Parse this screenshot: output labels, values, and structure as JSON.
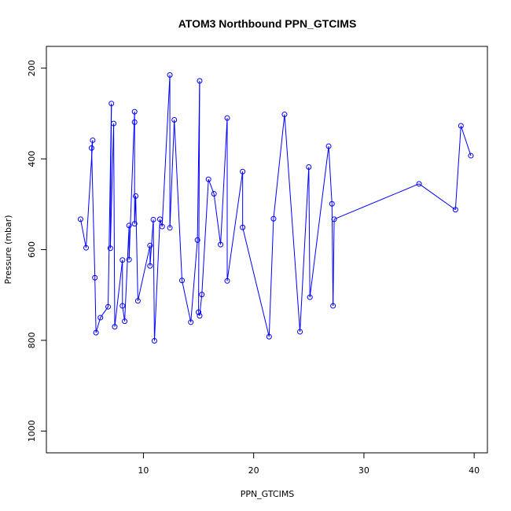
{
  "chart_data": {
    "type": "line",
    "title": "ATOM3 Northbound PPN_GTCIMS",
    "xlabel": "PPN_GTCIMS",
    "ylabel": "Pressure (mbar)",
    "xlim": [
      1.2,
      41.2
    ],
    "ylim": [
      1048,
      152
    ],
    "y_reversed": true,
    "x_ticks": [
      10,
      20,
      30,
      40
    ],
    "y_ticks": [
      200,
      400,
      600,
      800,
      1000
    ],
    "grid": false,
    "legend": "none",
    "line_color": "#0000ff",
    "point_marker": "open-circle",
    "series": [
      {
        "points": [
          [
            4.3,
            533
          ],
          [
            4.8,
            596
          ],
          [
            5.4,
            359
          ],
          [
            5.3,
            376
          ],
          [
            5.6,
            662
          ],
          [
            5.7,
            783
          ],
          [
            6.1,
            750
          ],
          [
            6.8,
            726
          ],
          [
            7.1,
            278
          ],
          [
            7.0,
            597
          ],
          [
            7.3,
            322
          ],
          [
            7.4,
            770
          ],
          [
            8.1,
            623
          ],
          [
            8.1,
            724
          ],
          [
            8.3,
            758
          ],
          [
            8.7,
            547
          ],
          [
            8.7,
            622
          ],
          [
            9.2,
            296
          ],
          [
            9.2,
            319
          ],
          [
            9.2,
            543
          ],
          [
            9.3,
            482
          ],
          [
            9.5,
            713
          ],
          [
            10.6,
            591
          ],
          [
            10.6,
            636
          ],
          [
            10.9,
            534
          ],
          [
            11.0,
            801
          ],
          [
            11.5,
            533
          ],
          [
            11.7,
            549
          ],
          [
            12.4,
            215
          ],
          [
            12.4,
            552
          ],
          [
            12.8,
            314
          ],
          [
            13.5,
            668
          ],
          [
            14.3,
            760
          ],
          [
            14.9,
            579
          ],
          [
            15.1,
            228
          ],
          [
            15.0,
            738
          ],
          [
            15.1,
            746
          ],
          [
            15.3,
            699
          ],
          [
            15.9,
            445
          ],
          [
            16.4,
            477
          ],
          [
            17.0,
            589
          ],
          [
            17.6,
            310
          ],
          [
            17.6,
            669
          ],
          [
            19.0,
            428
          ],
          [
            19.0,
            551
          ],
          [
            21.4,
            792
          ],
          [
            21.8,
            532
          ],
          [
            22.8,
            302
          ],
          [
            24.2,
            781
          ],
          [
            25.0,
            418
          ],
          [
            25.1,
            705
          ],
          [
            26.8,
            372
          ],
          [
            27.1,
            499
          ],
          [
            27.2,
            724
          ],
          [
            27.3,
            533
          ],
          [
            35.0,
            455
          ],
          [
            38.3,
            512
          ],
          [
            38.8,
            327
          ],
          [
            39.7,
            393
          ]
        ]
      }
    ]
  }
}
